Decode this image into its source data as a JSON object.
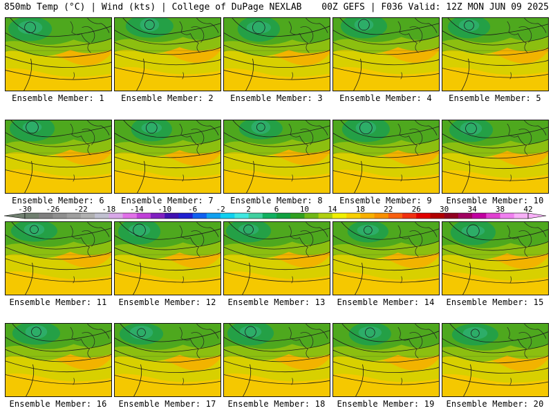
{
  "header": {
    "left": "850mb Temp (°C) | Wind (kts) | College of DuPage NEXLAB",
    "right": "00Z GEFS | F036 Valid: 12Z MON JUN 09 2025"
  },
  "members": [
    {
      "label": "Ensemble Member: 1"
    },
    {
      "label": "Ensemble Member: 2"
    },
    {
      "label": "Ensemble Member: 3"
    },
    {
      "label": "Ensemble Member: 4"
    },
    {
      "label": "Ensemble Member: 5"
    },
    {
      "label": "Ensemble Member: 6"
    },
    {
      "label": "Ensemble Member: 7"
    },
    {
      "label": "Ensemble Member: 8"
    },
    {
      "label": "Ensemble Member: 9"
    },
    {
      "label": "Ensemble Member: 10"
    },
    {
      "label": "Ensemble Member: 11"
    },
    {
      "label": "Ensemble Member: 12"
    },
    {
      "label": "Ensemble Member: 13"
    },
    {
      "label": "Ensemble Member: 14"
    },
    {
      "label": "Ensemble Member: 15"
    },
    {
      "label": "Ensemble Member: 16"
    },
    {
      "label": "Ensemble Member: 17"
    },
    {
      "label": "Ensemble Member: 18"
    },
    {
      "label": "Ensemble Member: 19"
    },
    {
      "label": "Ensemble Member: 20"
    }
  ],
  "colorbar": {
    "labels": [
      "-30",
      "-26",
      "-22",
      "-18",
      "-14",
      "-10",
      "-6",
      "-2",
      "2",
      "6",
      "10",
      "14",
      "18",
      "22",
      "26",
      "30",
      "34",
      "38",
      "42"
    ],
    "colors": [
      "#6f7f6f",
      "#7f7f7f",
      "#8f8f8f",
      "#9f9f9f",
      "#b0b0b0",
      "#c0c0d0",
      "#d8a8e8",
      "#e070e8",
      "#c040d8",
      "#8020c0",
      "#4010b0",
      "#2020d0",
      "#1060f0",
      "#10a0f0",
      "#10d0f0",
      "#40e8e0",
      "#40d0a0",
      "#10b060",
      "#10a040",
      "#30a020",
      "#70b818",
      "#b0d010",
      "#f0f000",
      "#f8d000",
      "#f8b000",
      "#f89000",
      "#f86010",
      "#f03010",
      "#e00000",
      "#b00000",
      "#900020",
      "#a00060",
      "#c000a0",
      "#e040d0",
      "#f080f0",
      "#f8b0f8"
    ]
  }
}
